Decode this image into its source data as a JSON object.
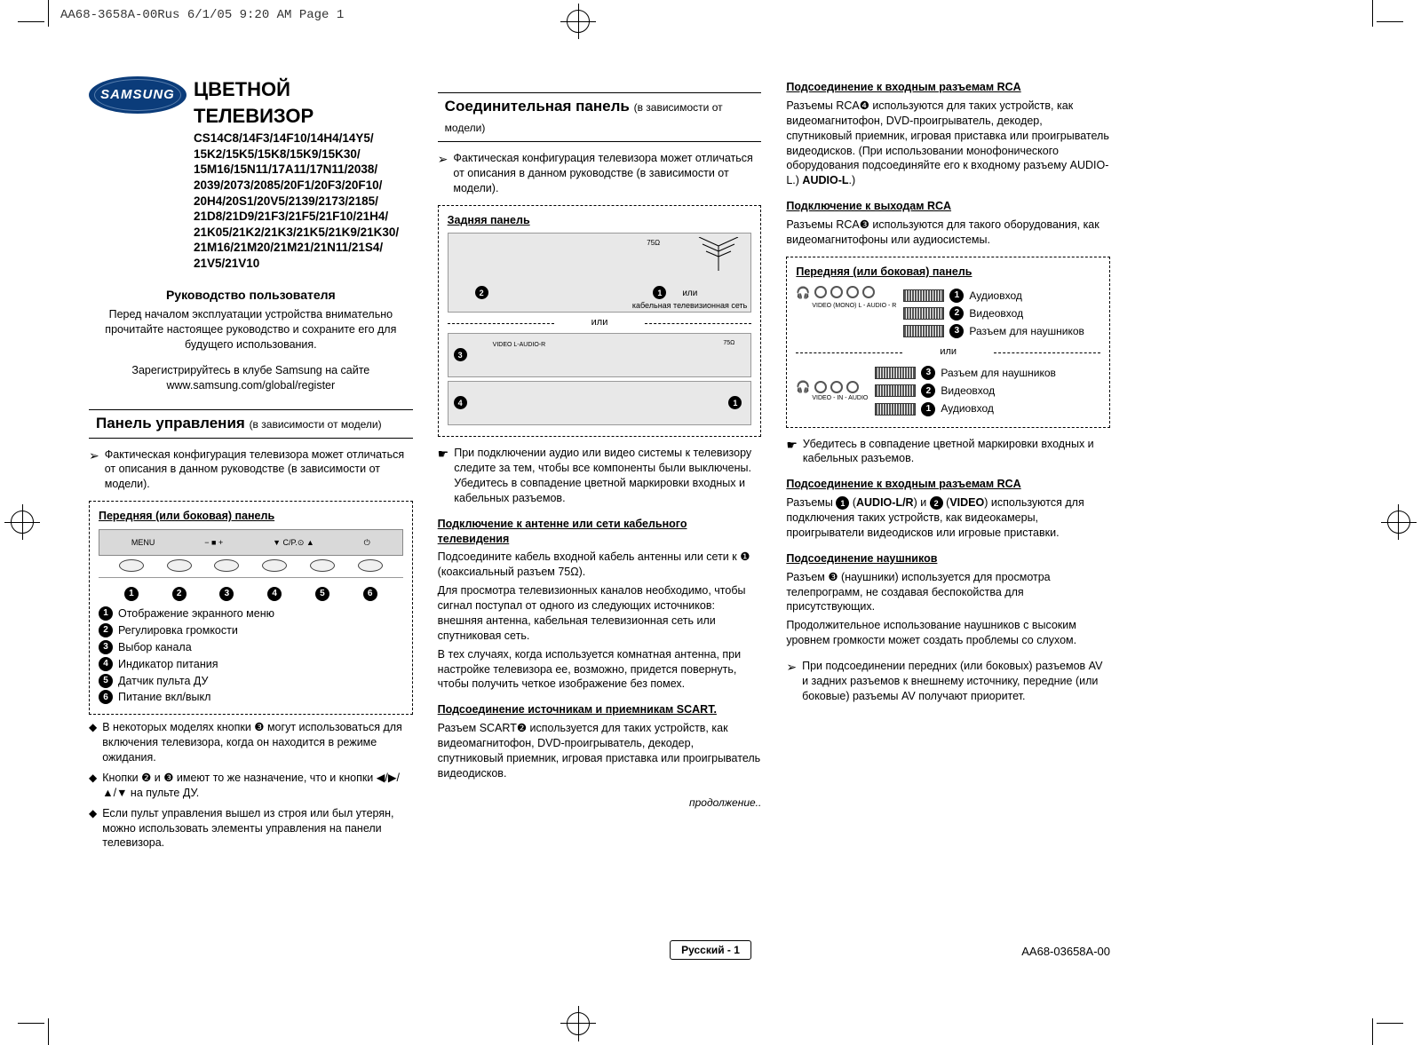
{
  "printHeader": "AA68-3658A-00Rus  6/1/05  9:20 AM  Page 1",
  "brand": "SAMSUNG",
  "mainTitle": "ЦВЕТНОЙ ТЕЛЕВИЗОР",
  "models": "CS14C8/14F3/14F10/14H4/14Y5/\n15K2/15K5/15K8/15K9/15K30/\n15M16/15N11/17A11/17N11/2038/\n2039/2073/2085/20F1/20F3/20F10/\n20H4/20S1/20V5/2139/2173/2185/\n21D8/21D9/21F3/21F5/21F10/21H4/\n21K05/21K2/21K3/21K5/21K9/21K30/\n21M16/21M20/21M21/21N11/21S4/\n21V5/21V10",
  "manualTitle": "Руководство пользователя",
  "introText": "Перед началом эксплуатации устройства внимательно прочитайте настоящее руководство и сохраните его для будущего использования.",
  "registerText": "Зарегистрируйтесь в клубе Samsung на сайте www.samsung.com/global/register",
  "col1": {
    "sectionTitle": "Панель управления",
    "sectionSub": "(в зависимости от модели)",
    "note": "Фактическая конфигурация телевизора может отличаться от описания в данном руководстве (в зависимости от модели).",
    "panelLabel": "Передняя (или боковая) панель",
    "tvLabels": {
      "menu": "MENU",
      "vol": "−  ■  +",
      "ch": "▼ C/P.⊙ ▲"
    },
    "legend": [
      {
        "n": "1",
        "t": "Отображение экранного меню"
      },
      {
        "n": "2",
        "t": "Регулировка громкости"
      },
      {
        "n": "3",
        "t": "Выбор канала"
      },
      {
        "n": "4",
        "t": "Индикатор питания"
      },
      {
        "n": "5",
        "t": "Датчик пульта ДУ"
      },
      {
        "n": "6",
        "t": "Питание вкл/выкл"
      }
    ],
    "diamonds": [
      "В некоторых моделях кнопки ❸ могут использоваться для включения телевизора, когда он находится в режиме ожидания.",
      "Кнопки ❷ и ❸ имеют то же назначение, что и кнопки ◀/▶/▲/▼ на пульте ДУ.",
      "Если пульт управления вышел из строя или был утерян, можно использовать элементы управления на панели телевизора."
    ]
  },
  "col2": {
    "sectionTitle": "Соединительная панель",
    "sectionSub": "(в зависимости от модели)",
    "note": "Фактическая конфигурация телевизора может отличаться от описания в данном руководстве (в зависимости от модели).",
    "rearLabel": "Задняя панель",
    "orLabel": "или",
    "cableLabel": "кабельная телевизионная сеть",
    "hand1": "При подключении аудио или видео системы к телевизору следите за тем, чтобы все компоненты были выключены.\nУбедитесь в совпадение цветной маркировки входных и кабельных разъемов.",
    "h1": "Подключение к антенне или сети кабельного телевидения",
    "p1a": "Подсоедините кабель входной кабель антенны или сети к ❶ (коаксиальный разъем 75Ω).",
    "p1b": "Для просмотра телевизионных каналов необходимо, чтобы сигнал поступал от одного из следующих источников: внешняя антенна, кабельная телевизионная сеть или спутниковая сеть.",
    "p1c": "В тех случаях, когда используется комнатная антенна, при настройке телевизора ее, возможно, придется повернуть, чтобы получить четкое изображение без помех.",
    "h2": "Подсоединение источникам и приемникам SCART.",
    "p2": "Разъем SCART❷ используется для таких устройств, как видеомагнитофон, DVD-проигрыватель, декодер, спутниковый приемник, игровая приставка или проигрыватель видеодисков.",
    "continued": "продолжение.."
  },
  "col3": {
    "h1": "Подсоединение к входным разъемам RCA",
    "p1": "Разъемы RCA❹ используются для таких устройств, как видеомагнитофон, DVD-проигрыватель, декодер, спутниковый приемник, игровая приставка или проигрыватель видеодисков. (При использовании монофонического оборудования подсоединяйте его к входному разъему AUDIO-L.)",
    "h2": "Подключение к выходам RCA",
    "p2": "Разъемы RCA❸ используются для такого оборудования, как видеомагнитофоны или аудиосистемы.",
    "panelLabel": "Передняя (или боковая) панель",
    "sideList1": [
      {
        "n": "1",
        "t": "Аудиовход"
      },
      {
        "n": "2",
        "t": "Видеовход"
      },
      {
        "n": "3",
        "t": "Разъем для наушников"
      }
    ],
    "orLabel": "или",
    "sideList2": [
      {
        "n": "3",
        "t": "Разъем для наушников"
      },
      {
        "n": "2",
        "t": "Видеовход"
      },
      {
        "n": "1",
        "t": "Аудиовход"
      }
    ],
    "sideCaption": "VIDEO - IN - AUDIO",
    "sideCaptionTop": "VIDEO  (MONO) L - AUDIO - R",
    "hand": "Убедитесь в совпадение цветной маркировки входных и кабельных разъемов.",
    "h3": "Подсоединение к входным разъемам RCA",
    "p3": "Разъемы ❶ (AUDIO-L/R) и ❷ (VIDEO) используются для подключения таких устройств, как видеокамеры, проигрыватели видеодисков или игровые приставки.",
    "h4": "Подсоединение наушников",
    "p4a": "Разъем ❸ (наушники) используется для просмотра телепрограмм, не создавая беспокойства для присутствующих.",
    "p4b": "Продолжительное использование наушников с высоким уровнем громкости может создать проблемы со слухом.",
    "arrow": "При подсоединении передних (или боковых) разъемов AV и задних разъемов к внешнему источнику, передние (или боковые) разъемы AV получают приоритет."
  },
  "footer": {
    "lang": "Русский - 1",
    "code": "AA68-03658A-00"
  }
}
